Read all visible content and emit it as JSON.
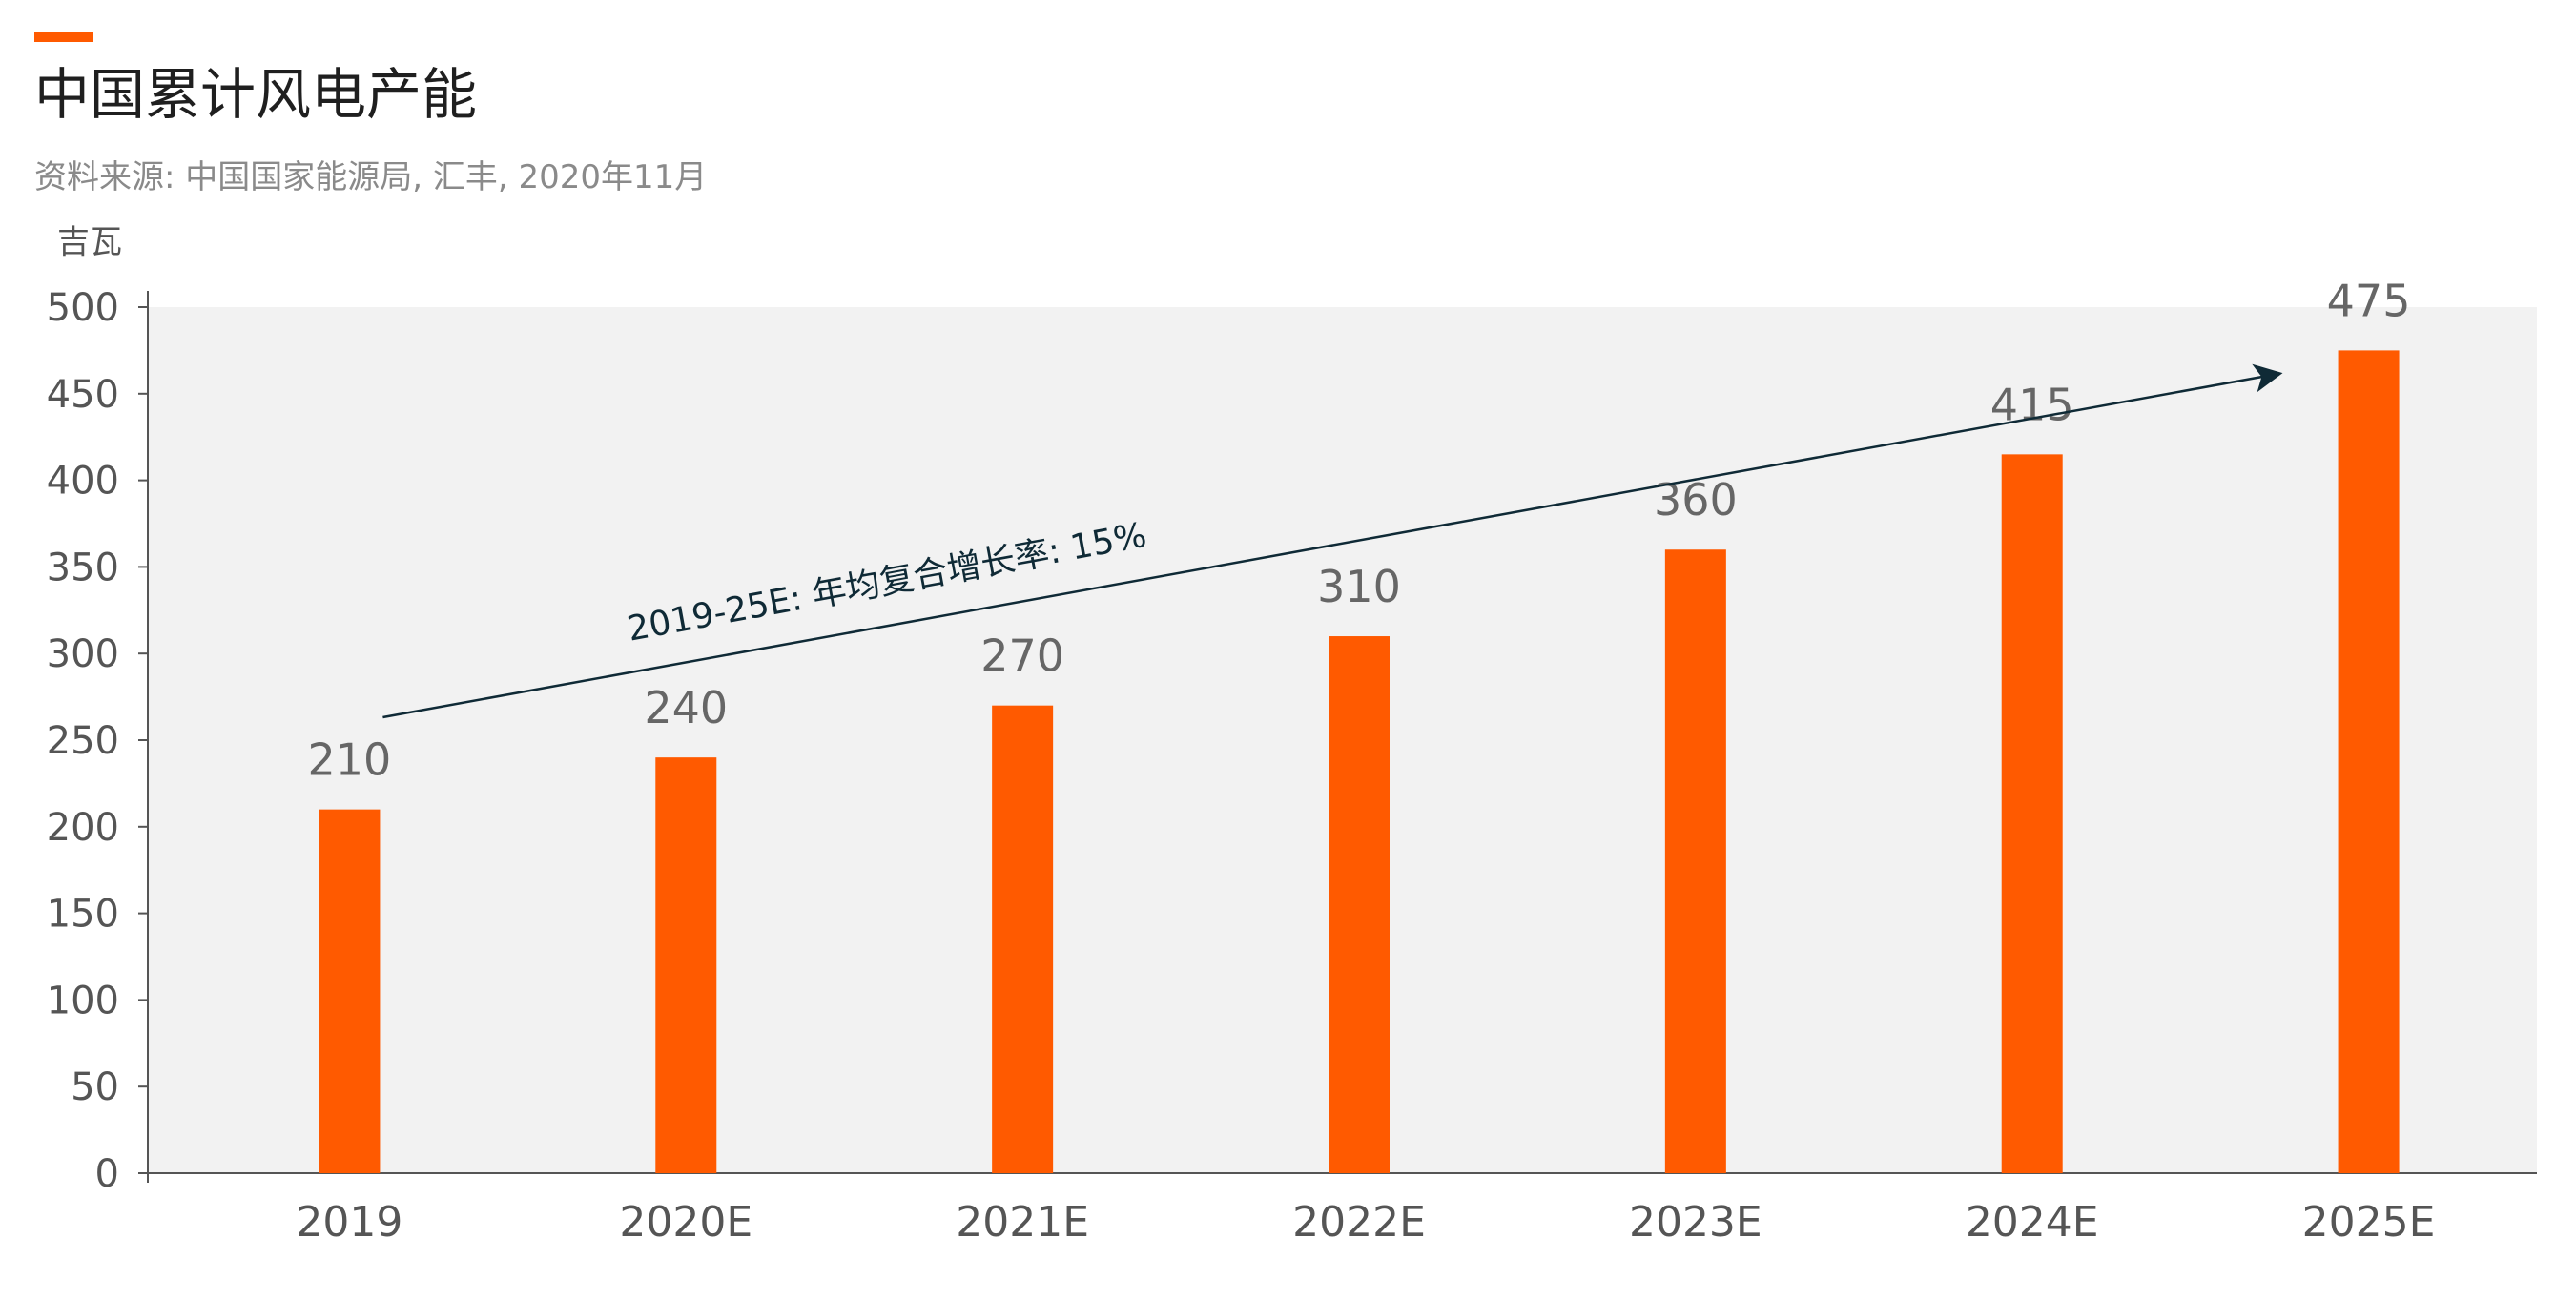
{
  "header": {
    "title": "中国累计风电产能",
    "source": "资料来源: 中国国家能源局, 汇丰, 2020年11月",
    "unit": "吉瓦"
  },
  "colors": {
    "accent": "#ff5a00",
    "bar": "#ff5a00",
    "plot_background": "#f2f2f2",
    "arrow": "#0f2a36"
  },
  "annotation": {
    "cagr_label": "2019-25E: 年均复合增长率: 15%"
  },
  "chart_data": {
    "type": "bar",
    "title": "中国累计风电产能",
    "ylabel": "吉瓦",
    "xlabel": "",
    "categories": [
      "2019",
      "2020E",
      "2021E",
      "2022E",
      "2023E",
      "2024E",
      "2025E"
    ],
    "values": [
      210,
      240,
      270,
      310,
      360,
      415,
      475
    ],
    "data_labels": [
      "210",
      "240",
      "270",
      "310",
      "360",
      "415",
      "475"
    ],
    "ylim": [
      0,
      500
    ],
    "yticks": [
      0,
      50,
      100,
      150,
      200,
      250,
      300,
      350,
      400,
      450,
      500
    ],
    "grid": false,
    "legend": "none"
  }
}
